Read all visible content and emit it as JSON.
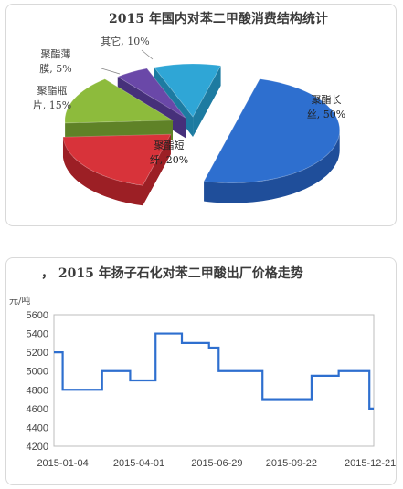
{
  "chart_data": [
    {
      "type": "pie",
      "title": "2015 年国内对苯二甲酸消费结构统计",
      "slices": [
        {
          "label_line1": "聚酯长",
          "label_line2": "丝, 50%",
          "value": 50,
          "color": "#2e6fcf",
          "side": "#1f4e9a"
        },
        {
          "label_line1": "聚酯短",
          "label_line2": "纤, 20%",
          "value": 20,
          "color": "#d8333a",
          "side": "#9c1f25"
        },
        {
          "label_line1": "聚酯瓶",
          "label_line2": "片, 15%",
          "value": 15,
          "color": "#8dbb3c",
          "side": "#5f8227"
        },
        {
          "label_line1": "聚酯薄",
          "label_line2": "膜, 5%",
          "value": 5,
          "color": "#6a48a8",
          "side": "#46307a"
        },
        {
          "label_line1": "其它, 10%",
          "label_line2": "",
          "value": 10,
          "color": "#2fa6d6",
          "side": "#1d7ba1"
        }
      ]
    },
    {
      "type": "line",
      "title": "2015 年扬子石化对苯二甲酸出厂价格走势",
      "title_prefix": "，",
      "ylabel": "元/吨",
      "ylim": [
        4200,
        5600
      ],
      "yticks": [
        4200,
        4400,
        4600,
        4800,
        5000,
        5200,
        5400,
        5600
      ],
      "xlim": [
        "2014-12-25",
        "2015-12-25"
      ],
      "xticks": [
        "2015-01-04",
        "2015-04-01",
        "2015-06-29",
        "2015-09-22",
        "2015-12-21"
      ],
      "line_color": "#2e6fcf",
      "step": true,
      "points": [
        {
          "x": "2014-12-25",
          "y": 5200
        },
        {
          "x": "2015-01-04",
          "y": 4800
        },
        {
          "x": "2015-02-18",
          "y": 5000
        },
        {
          "x": "2015-03-22",
          "y": 4900
        },
        {
          "x": "2015-04-20",
          "y": 5400
        },
        {
          "x": "2015-05-20",
          "y": 5300
        },
        {
          "x": "2015-06-20",
          "y": 5250
        },
        {
          "x": "2015-07-01",
          "y": 5000
        },
        {
          "x": "2015-08-20",
          "y": 4700
        },
        {
          "x": "2015-10-15",
          "y": 4950
        },
        {
          "x": "2015-11-15",
          "y": 5000
        },
        {
          "x": "2015-12-20",
          "y": 4600
        }
      ]
    }
  ]
}
